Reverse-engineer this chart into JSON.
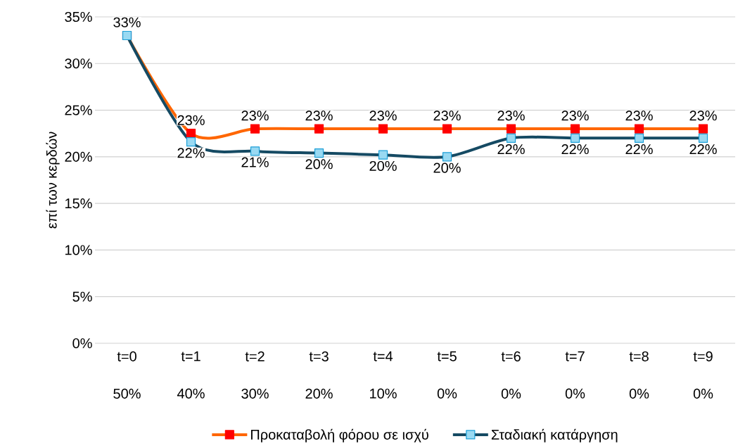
{
  "chart_data": {
    "type": "line",
    "ylabel": "επί των κερδών",
    "categories": [
      "t=0 50%",
      "t=1 40%",
      "t=2 30%",
      "t=3 20%",
      "t=4 10%",
      "t=5 0%",
      "t=6 0%",
      "t=7 0%",
      "t=8 0%",
      "t=9 0%"
    ],
    "series": [
      {
        "name": "Προκαταβολή φόρου σε ισχύ",
        "color": "#ff6600",
        "values": [
          33,
          22.5,
          23,
          23,
          23,
          23,
          23,
          23,
          23,
          23
        ],
        "value_labels": [
          "33%",
          "23%",
          "23%",
          "23%",
          "23%",
          "23%",
          "23%",
          "23%",
          "23%",
          "23%"
        ]
      },
      {
        "name": "Σταδιακή κατάργηση",
        "color": "#154a63",
        "values": [
          33,
          21.6,
          20.6,
          20.4,
          20.2,
          20.0,
          22,
          22,
          22,
          22
        ],
        "value_labels": [
          null,
          "22%",
          "21%",
          "20%",
          "20%",
          "20%",
          "22%",
          "22%",
          "22%",
          "22%"
        ]
      }
    ],
    "ylim": [
      0,
      35
    ],
    "yticks": [
      {
        "value": 0,
        "label": "0%"
      },
      {
        "value": 5,
        "label": "5%"
      },
      {
        "value": 10,
        "label": "10%"
      },
      {
        "value": 15,
        "label": "15%"
      },
      {
        "value": 20,
        "label": "20%"
      },
      {
        "value": 25,
        "label": "25%"
      },
      {
        "value": 30,
        "label": "30%"
      },
      {
        "value": 35,
        "label": "35%"
      }
    ],
    "grid": "y",
    "legend": "bottom",
    "marker": "square",
    "line_style": "solid"
  }
}
